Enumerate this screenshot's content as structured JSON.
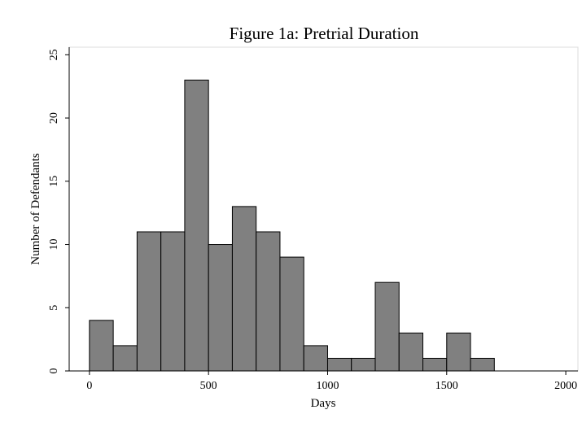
{
  "chart_data": {
    "type": "histogram",
    "title": "Figure 1a: Pretrial Duration",
    "x_label": "Days",
    "y_label": "Number of Defendants",
    "bins": [
      0,
      100,
      200,
      300,
      400,
      500,
      600,
      700,
      800,
      900,
      1000,
      1100,
      1200,
      1300,
      1400,
      1500,
      1600,
      1700
    ],
    "values": [
      4,
      2,
      11,
      11,
      23,
      10,
      13,
      11,
      9,
      2,
      1,
      1,
      7,
      3,
      1,
      3,
      1
    ],
    "color": "#808080",
    "xlim": [
      -85,
      2051
    ],
    "xticks": [
      0,
      500,
      1000,
      1500,
      2000
    ],
    "ylim": [
      0,
      25.6
    ],
    "yticks": [
      0,
      5,
      10,
      15,
      20,
      25
    ]
  }
}
